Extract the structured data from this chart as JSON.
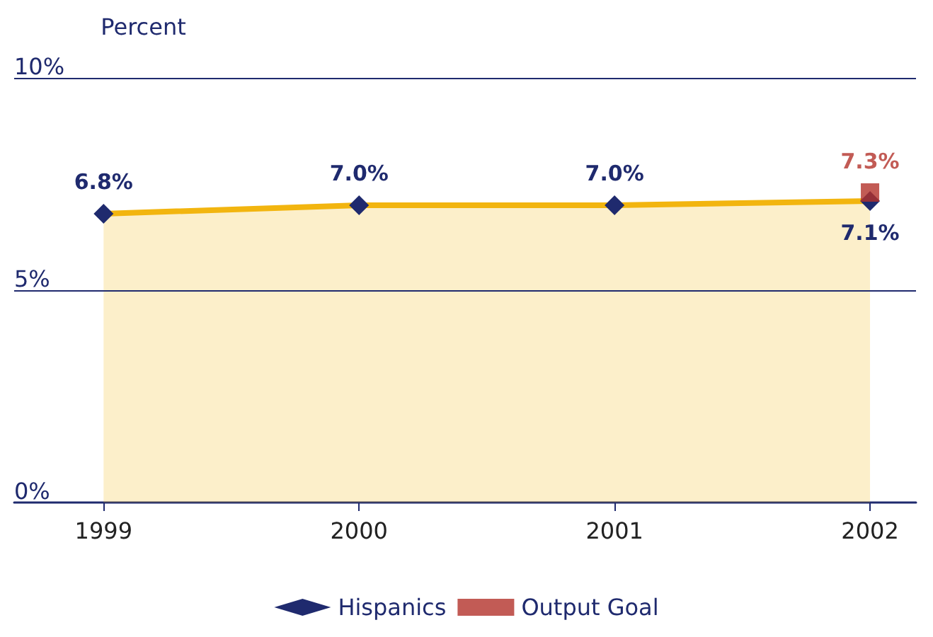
{
  "chart_data": {
    "type": "area",
    "ylabel": "Percent",
    "categories": [
      "1999",
      "2000",
      "2001",
      "2002"
    ],
    "series": [
      {
        "name": "Hispanics",
        "color": "#f2b50f",
        "values": [
          6.8,
          7.0,
          7.0,
          7.1
        ],
        "marker": "diamond",
        "value_labels": [
          "6.8%",
          "7.0%",
          "7.0%",
          "7.1%"
        ]
      },
      {
        "name": "Output Goal",
        "type": "scatter",
        "color": "#b3322b",
        "values": [
          null,
          null,
          null,
          7.3
        ],
        "marker": "square",
        "value_labels": [
          null,
          null,
          null,
          "7.3%"
        ]
      }
    ],
    "ylim": [
      0,
      10
    ],
    "yticks": [
      {
        "value": 0,
        "label": "0%"
      },
      {
        "value": 5,
        "label": "5%"
      },
      {
        "value": 10,
        "label": "10%"
      }
    ],
    "ref_lines": [
      {
        "axis": "y",
        "value": 5,
        "color": "#1f2a6e"
      },
      {
        "axis": "y",
        "value": 10,
        "color": "#1f2a6e"
      }
    ],
    "legend": "bottom"
  }
}
